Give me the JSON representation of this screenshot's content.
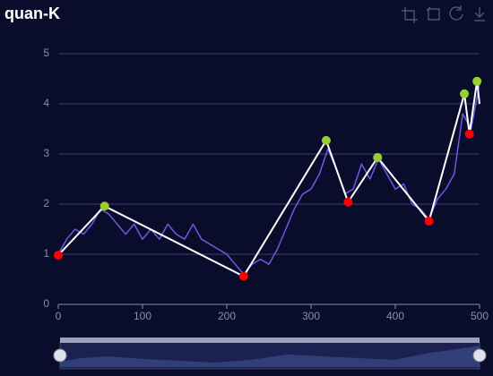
{
  "chart_data": {
    "type": "line",
    "title": "quan-K",
    "xlim": [
      0,
      500
    ],
    "xticks": [
      0,
      100,
      200,
      300,
      400,
      500
    ],
    "ylim": [
      0,
      5
    ],
    "yticks": [
      0,
      1,
      2,
      3,
      4,
      5
    ],
    "grid": true,
    "series": [
      {
        "type": "line",
        "color": "#6a5ae0",
        "width": 1.5,
        "x": [
          0,
          10,
          20,
          30,
          40,
          50,
          60,
          70,
          80,
          90,
          100,
          110,
          120,
          130,
          140,
          150,
          160,
          170,
          180,
          190,
          200,
          210,
          220,
          230,
          240,
          250,
          260,
          270,
          280,
          290,
          300,
          310,
          320,
          330,
          340,
          350,
          360,
          370,
          380,
          390,
          400,
          410,
          420,
          430,
          440,
          450,
          460,
          470,
          480,
          490,
          500
        ],
        "values": [
          1.0,
          1.3,
          1.5,
          1.4,
          1.6,
          1.9,
          1.8,
          1.6,
          1.4,
          1.6,
          1.3,
          1.5,
          1.3,
          1.6,
          1.4,
          1.3,
          1.6,
          1.3,
          1.2,
          1.1,
          1.0,
          0.8,
          0.6,
          0.8,
          0.9,
          0.8,
          1.1,
          1.5,
          1.9,
          2.2,
          2.3,
          2.6,
          3.1,
          2.7,
          2.2,
          2.3,
          2.8,
          2.5,
          2.9,
          2.6,
          2.3,
          2.4,
          2.0,
          1.9,
          1.7,
          2.1,
          2.3,
          2.6,
          3.8,
          3.5,
          4.4
        ]
      },
      {
        "type": "line",
        "color": "#ffffff",
        "width": 2,
        "x": [
          0,
          55,
          220,
          318,
          344,
          379,
          440,
          482,
          488,
          497,
          500
        ],
        "values": [
          0.98,
          1.96,
          0.56,
          3.27,
          2.04,
          2.93,
          1.66,
          4.2,
          3.4,
          4.45,
          4.0
        ]
      },
      {
        "type": "scatter",
        "color": "#ff0000",
        "x": [
          0,
          220,
          344,
          440,
          488
        ],
        "values": [
          0.98,
          0.56,
          2.04,
          1.66,
          3.4
        ]
      },
      {
        "type": "scatter",
        "color": "#9acd32",
        "x": [
          55,
          318,
          379,
          482,
          497
        ],
        "values": [
          1.96,
          3.27,
          2.93,
          4.2,
          4.45
        ]
      }
    ]
  }
}
